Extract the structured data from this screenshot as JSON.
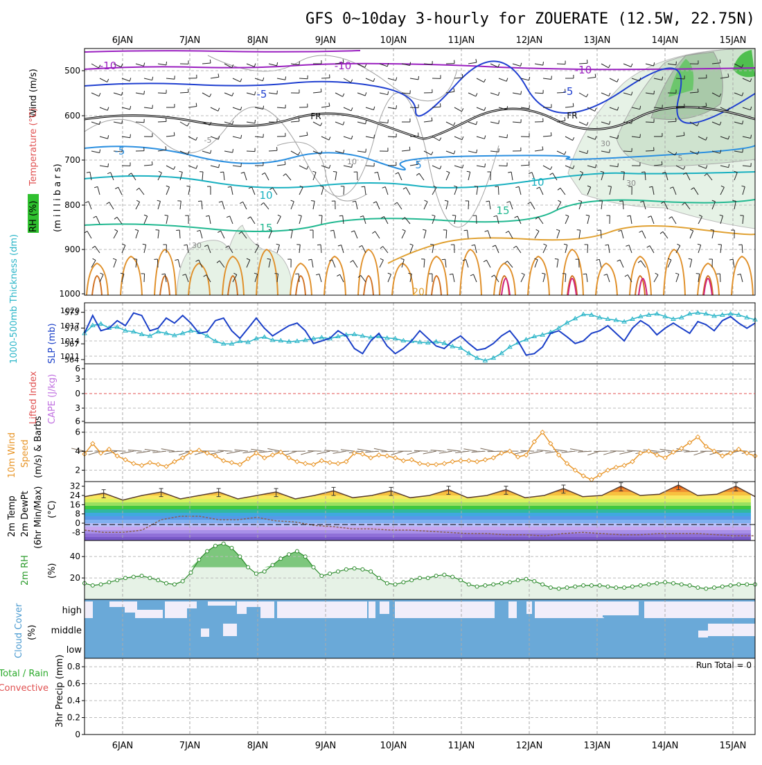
{
  "title": "GFS 0~10day 3-hourly for ZOUERATE (12.5W, 22.75N)",
  "colors": {
    "thickness": "#2ab5c8",
    "slp": "#1a3fc8",
    "wind10m": "#e8962a",
    "rh2m_fill": "#e6f2e6",
    "rh2m_line": "#2a8a2a",
    "cloud": "#6aa9d8",
    "cloud_gap": "#f1eefa",
    "li_zero": "#e05050",
    "freezing": "#000000"
  },
  "dates": [
    "6JAN",
    "7JAN",
    "8JAN",
    "9JAN",
    "10JAN",
    "11JAN",
    "12JAN",
    "13JAN",
    "14JAN",
    "15JAN"
  ],
  "panels": {
    "upper": {
      "label_wind": "Wind (m/s)",
      "label_temp": "Temperature (°C)",
      "label_rh": "RH (%)",
      "label_units": "(m i l l i b a r s)",
      "y_ticks": [
        "500",
        "600",
        "700",
        "800",
        "900",
        "1000"
      ],
      "contour_labels": [
        "-10",
        "-10",
        "-10",
        "-5",
        "-5",
        "-5",
        "5",
        "FR",
        "FR",
        "-5",
        "10",
        "10",
        "15",
        "15",
        "20",
        "30",
        "30",
        "30",
        "10",
        "5"
      ]
    },
    "slp": {
      "label_thickness": "1000-500mb Thickness (dm)",
      "label_slp": "SLP (mb)",
      "left_ticks": [
        "573",
        "570",
        "567",
        "564"
      ],
      "right_ticks": [
        "1020",
        "1017",
        "1014",
        "1011"
      ]
    },
    "cape": {
      "label_li": "Lifted Index",
      "label_cape": "CAPE (J/kg)",
      "ticks": [
        "6",
        "3",
        "0",
        "3",
        "6"
      ]
    },
    "wind10m": {
      "label_a": "10m Wind",
      "label_b": "Speed",
      "label_c": "(m/s) & Barbs",
      "ticks": [
        "6",
        "4",
        "2"
      ]
    },
    "temp2m": {
      "label_a": "2m Temp",
      "label_b": "2m DewPt",
      "label_c": "(6hr Min/Max)",
      "label_d": "(°C)",
      "ticks": [
        "32",
        "24",
        "16",
        "8",
        "0",
        "-8"
      ]
    },
    "rh2m": {
      "label_a": "2m RH",
      "label_b": "(%)",
      "ticks": [
        "40",
        "20"
      ]
    },
    "cloud": {
      "label_a": "Cloud Cover",
      "label_b": "(%)",
      "levels": [
        "high",
        "middle",
        "low"
      ]
    },
    "precip": {
      "label_a": "Total / Rain",
      "label_b": "Convective",
      "label_c": "3hr Precip (mm)",
      "ticks": [
        "0.8",
        "0.6",
        "0.4",
        "0.2",
        "0"
      ],
      "run_total": "Run Total = 0"
    }
  },
  "chart_data": [
    {
      "type": "line",
      "title": "1000-500mb Thickness and SLP",
      "series": [
        {
          "name": "SLP (mb)",
          "axis": "right",
          "ylim": [
            1009.5,
            1021.5
          ],
          "values": [
            1015.5,
            1019,
            1016,
            1016.5,
            1018,
            1017,
            1019.5,
            1019,
            1016,
            1016.5,
            1018.5,
            1017.5,
            1019,
            1017.5,
            1015.5,
            1015.8,
            1018,
            1018.5,
            1016,
            1014.5,
            1016.5,
            1018.5,
            1016.5,
            1015,
            1016,
            1017,
            1017.5,
            1016,
            1013.5,
            1014,
            1014.5,
            1016,
            1015,
            1012.5,
            1011.5,
            1014,
            1015.5,
            1013,
            1011.5,
            1012.5,
            1014,
            1016,
            1014.5,
            1013,
            1012.5,
            1014,
            1015,
            1013.5,
            1012.2,
            1012.5,
            1013.5,
            1015,
            1016,
            1014,
            1011.2,
            1011.5,
            1012.8,
            1015.5,
            1016,
            1014.8,
            1013.5,
            1014,
            1015.5,
            1016,
            1017,
            1015.5,
            1014,
            1016.5,
            1018,
            1017,
            1015.2,
            1016.5,
            1017.5,
            1016.5,
            1015.5,
            1017.8,
            1017.2,
            1016,
            1018,
            1018.8,
            1017.5,
            1016.5,
            1017.5
          ]
        },
        {
          "name": "1000-500mb Thickness (dm)",
          "axis": "left",
          "ylim": [
            563.2,
            574.8
          ],
          "values": [
            569,
            570.5,
            570.8,
            570,
            570.2,
            569.5,
            569.3,
            568.8,
            568.5,
            569.3,
            569,
            568.6,
            569,
            569.5,
            569.2,
            568.5,
            567.5,
            567,
            567,
            567.5,
            567.3,
            568,
            568.3,
            567.7,
            567.6,
            567.4,
            567.5,
            567.7,
            568,
            568.2,
            568,
            568.4,
            568.7,
            568.8,
            568.5,
            568.2,
            568.4,
            568.1,
            568,
            567.6,
            567.5,
            567.3,
            567.2,
            567.4,
            567.1,
            566.5,
            566.2,
            565.2,
            564.3,
            563.8,
            564.3,
            565.2,
            566.4,
            567.2,
            567.8,
            568.4,
            568.7,
            569.2,
            570,
            571,
            571.8,
            572.6,
            572.5,
            572,
            571.7,
            571.5,
            571.2,
            571.7,
            572.2,
            572.5,
            572.7,
            572.2,
            571.7,
            572,
            572.7,
            572.9,
            572.7,
            572.3,
            572.5,
            572.7,
            572.5,
            572,
            571.6
          ]
        }
      ]
    },
    {
      "type": "line",
      "title": "10m Wind Speed (m/s)",
      "ylim": [
        0.8,
        7.0
      ],
      "values": [
        3.7,
        4.8,
        3.8,
        4.2,
        3.5,
        3.1,
        2.7,
        2.5,
        2.8,
        2.6,
        2.4,
        2.9,
        3.3,
        3.9,
        4.1,
        3.8,
        3.5,
        3.0,
        2.8,
        2.6,
        3.2,
        3.8,
        3.3,
        3.6,
        3.9,
        3.3,
        2.9,
        2.7,
        2.6,
        3.0,
        2.8,
        2.7,
        2.9,
        3.8,
        3.7,
        3.3,
        3.6,
        3.5,
        3.3,
        3.0,
        3.1,
        2.7,
        2.6,
        2.6,
        2.7,
        2.9,
        3.0,
        3.0,
        2.9,
        3.1,
        3.3,
        3.8,
        4.0,
        3.4,
        3.6,
        5.0,
        6.0,
        4.8,
        3.6,
        2.7,
        2.0,
        1.4,
        1.0,
        1.5,
        2.0,
        2.3,
        2.5,
        2.9,
        3.8,
        4.0,
        3.6,
        3.3,
        3.9,
        4.3,
        4.9,
        5.5,
        4.5,
        4.0,
        3.5,
        3.8,
        4.2,
        3.8,
        3.5
      ]
    },
    {
      "type": "area",
      "title": "2m Temp and DewPt (°C)",
      "ylim": [
        -15,
        36
      ],
      "temp": [
        23,
        26,
        20,
        24,
        27,
        21,
        24,
        27,
        21,
        24,
        27,
        21,
        24,
        28,
        22,
        24,
        28,
        22,
        24,
        29,
        22,
        24,
        29,
        22,
        24,
        30,
        23,
        24,
        32,
        24,
        25,
        33,
        24,
        25,
        32,
        23
      ],
      "dewpt": [
        -6,
        -8,
        -8,
        -6,
        3,
        6,
        6,
        3,
        3,
        5,
        2,
        1,
        -2,
        -3,
        -5,
        -5,
        -6,
        -6,
        -7,
        -8,
        -9,
        -9,
        -10,
        -10,
        -11,
        -9,
        -8,
        -9,
        -10,
        -10,
        -9,
        -9,
        -9,
        -10,
        -11,
        -11
      ]
    },
    {
      "type": "area",
      "title": "2m RH (%)",
      "ylim": [
        0,
        55
      ],
      "values": [
        15,
        13,
        14,
        16,
        18,
        20,
        21,
        22,
        20,
        18,
        15,
        14,
        17,
        25,
        37,
        45,
        50,
        52,
        48,
        40,
        30,
        24,
        26,
        32,
        38,
        42,
        45,
        40,
        30,
        22,
        24,
        26,
        28,
        29,
        28,
        26,
        20,
        15,
        14,
        16,
        18,
        20,
        20,
        22,
        23,
        21,
        18,
        14,
        12,
        13,
        14,
        15,
        16,
        18,
        19,
        17,
        14,
        11,
        10,
        11,
        12,
        13,
        13,
        13,
        12,
        11,
        11,
        12,
        13,
        14,
        15,
        16,
        15,
        14,
        13,
        11,
        10,
        11,
        12,
        13,
        14,
        14,
        14
      ]
    },
    {
      "type": "bar",
      "title": "3hr Precip (mm)",
      "ylim": [
        0,
        0.9
      ],
      "values": [],
      "run_total": 0
    }
  ]
}
